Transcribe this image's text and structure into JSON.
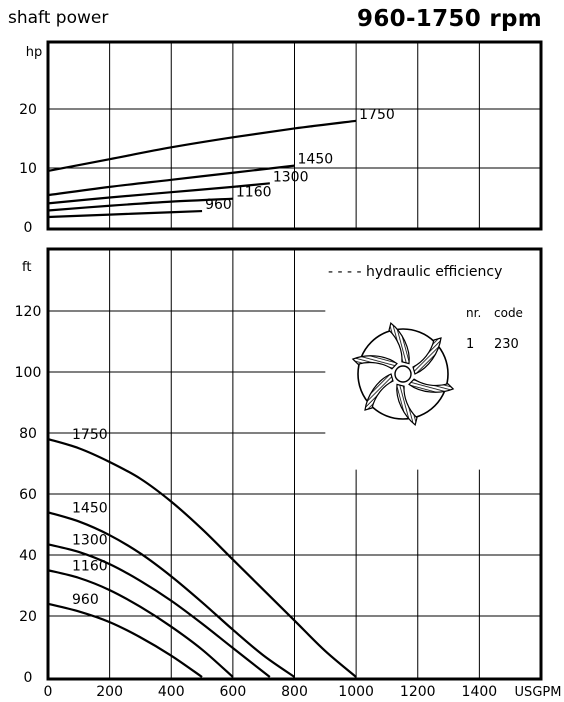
{
  "header": {
    "left_title": "shaft power",
    "right_title": "960-1750 rpm"
  },
  "legend": {
    "efficiency_label": "- - - - hydraulic efficiency",
    "impeller_table": {
      "headers": [
        "nr.",
        "code"
      ],
      "rows": [
        [
          "1",
          "230"
        ]
      ]
    }
  },
  "chart_data": [
    {
      "type": "line",
      "title": "shaft power",
      "ylabel": "hp",
      "xlim": [
        0,
        1600
      ],
      "ylim": [
        0,
        30
      ],
      "y_ticks": [
        "0",
        "10",
        "20"
      ],
      "series": [
        {
          "name": "1750",
          "x": [
            0,
            200,
            400,
            600,
            800,
            1000
          ],
          "y": [
            9.5,
            11.5,
            13.5,
            15.2,
            16.7,
            18.0
          ]
        },
        {
          "name": "1450",
          "x": [
            0,
            200,
            400,
            600,
            800
          ],
          "y": [
            5.4,
            6.8,
            8.0,
            9.2,
            10.4
          ]
        },
        {
          "name": "1300",
          "x": [
            0,
            200,
            400,
            600,
            720
          ],
          "y": [
            4.0,
            5.0,
            5.9,
            6.8,
            7.4
          ]
        },
        {
          "name": "1160",
          "x": [
            0,
            200,
            400,
            600
          ],
          "y": [
            2.8,
            3.6,
            4.3,
            4.8
          ]
        },
        {
          "name": "960",
          "x": [
            0,
            200,
            400,
            500
          ],
          "y": [
            1.7,
            2.1,
            2.5,
            2.7
          ]
        }
      ]
    },
    {
      "type": "line",
      "title": "",
      "xlabel": "USGPM",
      "ylabel": "ft",
      "xlim": [
        0,
        1600
      ],
      "ylim": [
        0,
        140
      ],
      "x_ticks": [
        "0",
        "200",
        "400",
        "600",
        "800",
        "1000",
        "1200",
        "1400"
      ],
      "y_ticks": [
        "0",
        "20",
        "40",
        "60",
        "80",
        "100",
        "120"
      ],
      "series": [
        {
          "name": "1750",
          "x": [
            0,
            100,
            200,
            300,
            400,
            500,
            600,
            700,
            800,
            900,
            1000
          ],
          "y": [
            78,
            75,
            70.5,
            65,
            57.5,
            48.5,
            38.5,
            28.5,
            18.5,
            8.5,
            0
          ]
        },
        {
          "name": "1450",
          "x": [
            0,
            100,
            200,
            300,
            400,
            500,
            600,
            700,
            800
          ],
          "y": [
            54,
            51,
            46.5,
            40.5,
            33,
            24.5,
            15.5,
            7,
            0
          ]
        },
        {
          "name": "1300",
          "x": [
            0,
            100,
            200,
            300,
            400,
            500,
            600,
            720
          ],
          "y": [
            43.5,
            41,
            37,
            31.5,
            25,
            17.5,
            9.5,
            0
          ]
        },
        {
          "name": "1160",
          "x": [
            0,
            100,
            200,
            300,
            400,
            500,
            600
          ],
          "y": [
            35,
            32.5,
            28.5,
            23,
            16.5,
            9,
            0
          ]
        },
        {
          "name": "960",
          "x": [
            0,
            100,
            200,
            300,
            400,
            500
          ],
          "y": [
            24,
            21.5,
            18,
            13,
            7,
            0
          ]
        }
      ]
    }
  ]
}
